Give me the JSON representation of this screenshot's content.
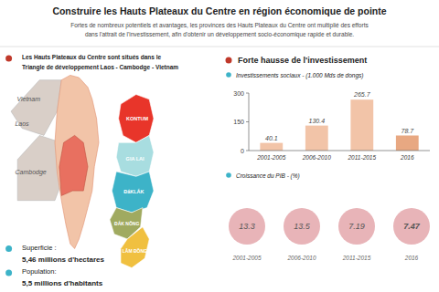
{
  "title": "Construire les Hauts Plateaux du Centre en région économique de pointe",
  "subtitle": [
    "Fortes de nombreux potentiels et avantages, les provinces des Hauts Plateaux du Centre ont multiplié des efforts",
    "dans l'attrait de l'investissement, afin d'obtenir un développement socio-économique rapide et durable."
  ],
  "annotations": [
    "Les Hauts Plateaux du Centre sont situés dans le",
    "Triangle de développement Laos - Cambodge - Vietnam",
    "Vietnam",
    "Laos",
    "Cambodge",
    "KONTUM",
    "GIA LAI",
    "ĐắKLẮK",
    "ĐẮK NÔNG",
    "LÂM ĐỒNG",
    "Superficie :",
    "5,46 millions d'hectares",
    "Population:",
    "5,5 millions d'habitants",
    "Forte hausse de l'investissement"
  ],
  "chart_data": [
    {
      "type": "bar",
      "title": "Investissements sociaux - (1.000 Mds de dongs)",
      "categories": [
        "2001-2005",
        "2006-2010",
        "2011-2015",
        "2016"
      ],
      "values": [
        40.1,
        130.4,
        265.7,
        78.7
      ],
      "colors": [
        "#f2c4a8",
        "#f2c4a8",
        "#f2c4a8",
        "#e8a882"
      ],
      "ylim": [
        0,
        300
      ],
      "yticks": [
        0,
        150,
        300
      ],
      "grid": false,
      "data_labels": true
    },
    {
      "type": "pictogram",
      "title": "Croissance du PIB - (%)",
      "categories": [
        "2001-2005",
        "2006-2010",
        "2011-2015",
        "2016"
      ],
      "values": [
        13.3,
        13.5,
        7.19,
        7.47
      ],
      "color": "#e8b4b8",
      "data_labels": true
    }
  ]
}
